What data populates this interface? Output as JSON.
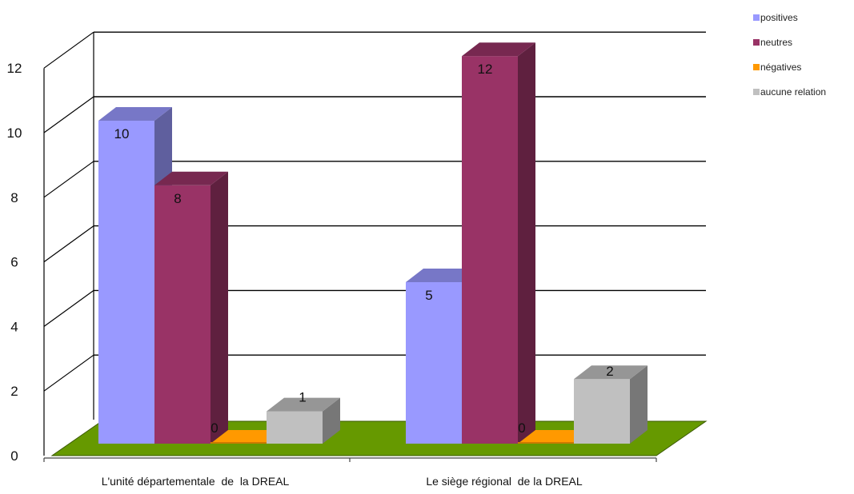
{
  "chart_data": {
    "type": "bar",
    "categories": [
      "L'unité départementale  de  la DREAL",
      "Le siège régional  de la DREAL"
    ],
    "series": [
      {
        "name": "positives",
        "values": [
          10,
          5
        ],
        "color": "#9999ff"
      },
      {
        "name": "neutres",
        "values": [
          8,
          12
        ],
        "color": "#993366"
      },
      {
        "name": "négatives",
        "values": [
          0,
          0
        ],
        "color": "#ff9900"
      },
      {
        "name": "aucune relation",
        "values": [
          1,
          2
        ],
        "color": "#c0c0c0"
      }
    ],
    "yticks": [
      "0",
      "2",
      "4",
      "6",
      "8",
      "10",
      "12"
    ],
    "ylim": [
      0,
      12
    ],
    "grid": true,
    "legend": "top-right",
    "floor_color": "#669900"
  }
}
